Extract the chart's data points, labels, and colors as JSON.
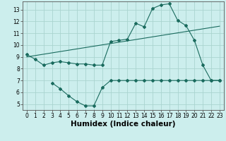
{
  "bg_color": "#cceeed",
  "grid_color": "#aad4d0",
  "line_color": "#1a6b5e",
  "line1_x": [
    0,
    1,
    2,
    3,
    4,
    5,
    6,
    7,
    8,
    9,
    10,
    11,
    12,
    13,
    14,
    15,
    16,
    17,
    18,
    19,
    20,
    21,
    22,
    23
  ],
  "line1_y": [
    9.2,
    8.8,
    8.3,
    8.5,
    8.6,
    8.5,
    8.4,
    8.4,
    8.3,
    8.3,
    10.3,
    10.4,
    10.5,
    11.85,
    11.55,
    13.1,
    13.4,
    13.5,
    12.1,
    11.65,
    10.4,
    8.3,
    7.0,
    7.0
  ],
  "line2_x": [
    3,
    4,
    5,
    6,
    7,
    8,
    9,
    10,
    11,
    12,
    13,
    14,
    15,
    16,
    17,
    18,
    19,
    20,
    21,
    22,
    23
  ],
  "line2_y": [
    6.8,
    6.3,
    5.7,
    5.2,
    4.85,
    4.85,
    6.4,
    7.0,
    7.0,
    7.0,
    7.0,
    7.0,
    7.0,
    7.0,
    7.0,
    7.0,
    7.0,
    7.0,
    7.0,
    7.0,
    7.0
  ],
  "line3_x": [
    0,
    23
  ],
  "line3_y": [
    9.0,
    11.6
  ],
  "xlabel": "Humidex (Indice chaleur)",
  "xlim": [
    -0.5,
    23.5
  ],
  "ylim": [
    4.5,
    13.7
  ],
  "xticks": [
    0,
    1,
    2,
    3,
    4,
    5,
    6,
    7,
    8,
    9,
    10,
    11,
    12,
    13,
    14,
    15,
    16,
    17,
    18,
    19,
    20,
    21,
    22,
    23
  ],
  "yticks": [
    5,
    6,
    7,
    8,
    9,
    10,
    11,
    12,
    13
  ],
  "tick_fontsize": 5.5,
  "xlabel_fontsize": 7.5
}
